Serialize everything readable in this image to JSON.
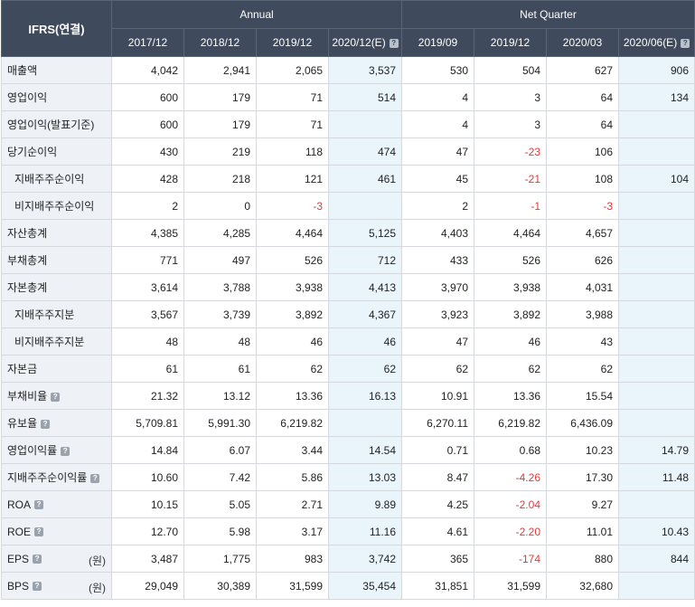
{
  "header": {
    "corner": "IFRS(연결)",
    "group_annual": "Annual",
    "group_quarter": "Net Quarter",
    "periods": [
      "2017/12",
      "2018/12",
      "2019/12",
      "2020/12(E)",
      "2019/09",
      "2019/12",
      "2020/03",
      "2020/06(E)"
    ],
    "estimate_flags": [
      false,
      false,
      false,
      true,
      false,
      false,
      false,
      true
    ]
  },
  "rows": [
    {
      "label": "매출액",
      "sub": false,
      "help": false,
      "unit": "",
      "values": [
        "4,042",
        "2,941",
        "2,065",
        "3,537",
        "530",
        "504",
        "627",
        "906"
      ]
    },
    {
      "label": "영업이익",
      "sub": false,
      "help": false,
      "unit": "",
      "values": [
        "600",
        "179",
        "71",
        "514",
        "4",
        "3",
        "64",
        "134"
      ]
    },
    {
      "label": "영업이익(발표기준)",
      "sub": false,
      "help": false,
      "unit": "",
      "values": [
        "600",
        "179",
        "71",
        "",
        "4",
        "3",
        "64",
        ""
      ]
    },
    {
      "label": "당기순이익",
      "sub": false,
      "help": false,
      "unit": "",
      "values": [
        "430",
        "219",
        "118",
        "474",
        "47",
        "-23",
        "106",
        ""
      ]
    },
    {
      "label": "지배주주순이익",
      "sub": true,
      "help": false,
      "unit": "",
      "values": [
        "428",
        "218",
        "121",
        "461",
        "45",
        "-21",
        "108",
        "104"
      ]
    },
    {
      "label": "비지배주주순이익",
      "sub": true,
      "help": false,
      "unit": "",
      "values": [
        "2",
        "0",
        "-3",
        "",
        "2",
        "-1",
        "-3",
        ""
      ]
    },
    {
      "label": "자산총계",
      "sub": false,
      "help": false,
      "unit": "",
      "values": [
        "4,385",
        "4,285",
        "4,464",
        "5,125",
        "4,403",
        "4,464",
        "4,657",
        ""
      ]
    },
    {
      "label": "부채총계",
      "sub": false,
      "help": false,
      "unit": "",
      "values": [
        "771",
        "497",
        "526",
        "712",
        "433",
        "526",
        "626",
        ""
      ]
    },
    {
      "label": "자본총계",
      "sub": false,
      "help": false,
      "unit": "",
      "values": [
        "3,614",
        "3,788",
        "3,938",
        "4,413",
        "3,970",
        "3,938",
        "4,031",
        ""
      ]
    },
    {
      "label": "지배주주지분",
      "sub": true,
      "help": false,
      "unit": "",
      "values": [
        "3,567",
        "3,739",
        "3,892",
        "4,367",
        "3,923",
        "3,892",
        "3,988",
        ""
      ]
    },
    {
      "label": "비지배주주지분",
      "sub": true,
      "help": false,
      "unit": "",
      "values": [
        "48",
        "48",
        "46",
        "46",
        "47",
        "46",
        "43",
        ""
      ]
    },
    {
      "label": "자본금",
      "sub": false,
      "help": false,
      "unit": "",
      "values": [
        "61",
        "61",
        "62",
        "62",
        "62",
        "62",
        "62",
        ""
      ]
    },
    {
      "label": "부채비율",
      "sub": false,
      "help": true,
      "unit": "",
      "values": [
        "21.32",
        "13.12",
        "13.36",
        "16.13",
        "10.91",
        "13.36",
        "15.54",
        ""
      ]
    },
    {
      "label": "유보율",
      "sub": false,
      "help": true,
      "unit": "",
      "values": [
        "5,709.81",
        "5,991.30",
        "6,219.82",
        "",
        "6,270.11",
        "6,219.82",
        "6,436.09",
        ""
      ]
    },
    {
      "label": "영업이익률",
      "sub": false,
      "help": true,
      "unit": "",
      "values": [
        "14.84",
        "6.07",
        "3.44",
        "14.54",
        "0.71",
        "0.68",
        "10.23",
        "14.79"
      ]
    },
    {
      "label": "지배주주순이익률",
      "sub": false,
      "help": true,
      "unit": "",
      "values": [
        "10.60",
        "7.42",
        "5.86",
        "13.03",
        "8.47",
        "-4.26",
        "17.30",
        "11.48"
      ]
    },
    {
      "label": "ROA",
      "sub": false,
      "help": true,
      "unit": "",
      "values": [
        "10.15",
        "5.05",
        "2.71",
        "9.89",
        "4.25",
        "-2.04",
        "9.27",
        ""
      ]
    },
    {
      "label": "ROE",
      "sub": false,
      "help": true,
      "unit": "",
      "values": [
        "12.70",
        "5.98",
        "3.17",
        "11.16",
        "4.61",
        "-2.20",
        "11.01",
        "10.43"
      ]
    },
    {
      "label": "EPS",
      "sub": false,
      "help": true,
      "unit": "(원)",
      "values": [
        "3,487",
        "1,775",
        "983",
        "3,742",
        "365",
        "-174",
        "880",
        "844"
      ]
    },
    {
      "label": "BPS",
      "sub": false,
      "help": true,
      "unit": "(원)",
      "values": [
        "29,049",
        "30,389",
        "31,599",
        "35,454",
        "31,851",
        "31,599",
        "32,680",
        ""
      ]
    }
  ],
  "colors": {
    "header_bg": "#3f4a5c",
    "label_bg": "#eef2f7",
    "estimate_bg": "#e9f5fb",
    "negative": "#e03b3b"
  }
}
